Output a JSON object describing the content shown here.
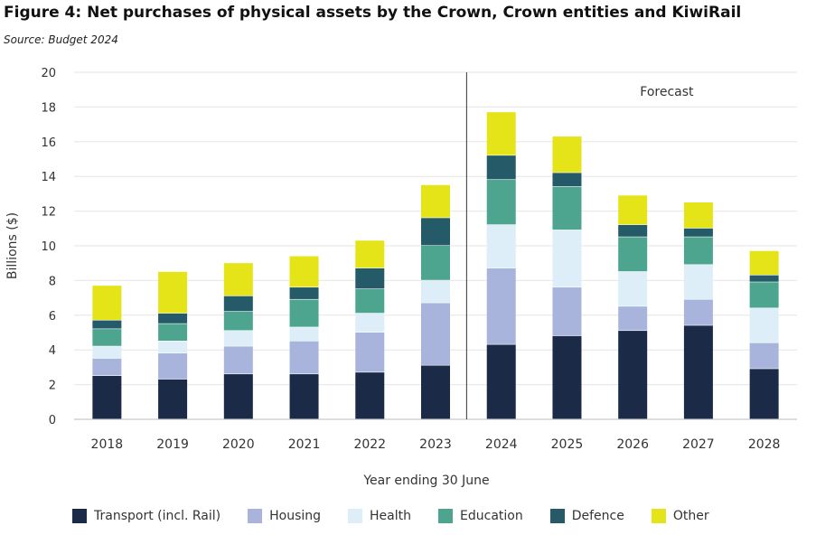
{
  "title": "Figure 4: Net purchases of physical assets by the Crown, Crown entities and KiwiRail",
  "source": "Source: Budget 2024",
  "chart_data": {
    "type": "bar",
    "stacked": true,
    "categories": [
      "2018",
      "2019",
      "2020",
      "2021",
      "2022",
      "2023",
      "2024",
      "2025",
      "2026",
      "2027",
      "2028"
    ],
    "ylabel": "Billions ($)",
    "xlabel": "Year ending 30 June",
    "ylim": [
      0,
      20
    ],
    "yticks": [
      "0",
      "2",
      "4",
      "6",
      "8",
      "10",
      "12",
      "14",
      "16",
      "18",
      "20"
    ],
    "grid": true,
    "annotation": "Forecast",
    "forecast_start": "2024",
    "legend_position": "bottom",
    "series": [
      {
        "name": "Transport (incl. Rail)",
        "color": "#1b2a47",
        "values": [
          2.5,
          2.3,
          2.6,
          2.6,
          2.7,
          3.1,
          4.3,
          4.8,
          5.1,
          5.4,
          2.9
        ]
      },
      {
        "name": "Housing",
        "color": "#a9b4dc",
        "values": [
          1.0,
          1.5,
          1.6,
          1.9,
          2.3,
          3.6,
          4.4,
          2.8,
          1.4,
          1.5,
          1.5
        ]
      },
      {
        "name": "Health",
        "color": "#ddeef9",
        "values": [
          0.7,
          0.7,
          0.9,
          0.8,
          1.1,
          1.3,
          2.5,
          3.3,
          2.0,
          2.0,
          2.0
        ]
      },
      {
        "name": "Education",
        "color": "#4da58f",
        "values": [
          1.0,
          1.0,
          1.1,
          1.6,
          1.4,
          2.0,
          2.6,
          2.5,
          2.0,
          1.6,
          1.5
        ]
      },
      {
        "name": "Defence",
        "color": "#255a69",
        "values": [
          0.5,
          0.6,
          0.9,
          0.7,
          1.2,
          1.6,
          1.4,
          0.8,
          0.7,
          0.5,
          0.4
        ]
      },
      {
        "name": "Other",
        "color": "#e4e418",
        "values": [
          2.0,
          2.4,
          1.9,
          1.8,
          1.6,
          1.9,
          2.5,
          2.1,
          1.7,
          1.5,
          1.4
        ]
      }
    ]
  }
}
